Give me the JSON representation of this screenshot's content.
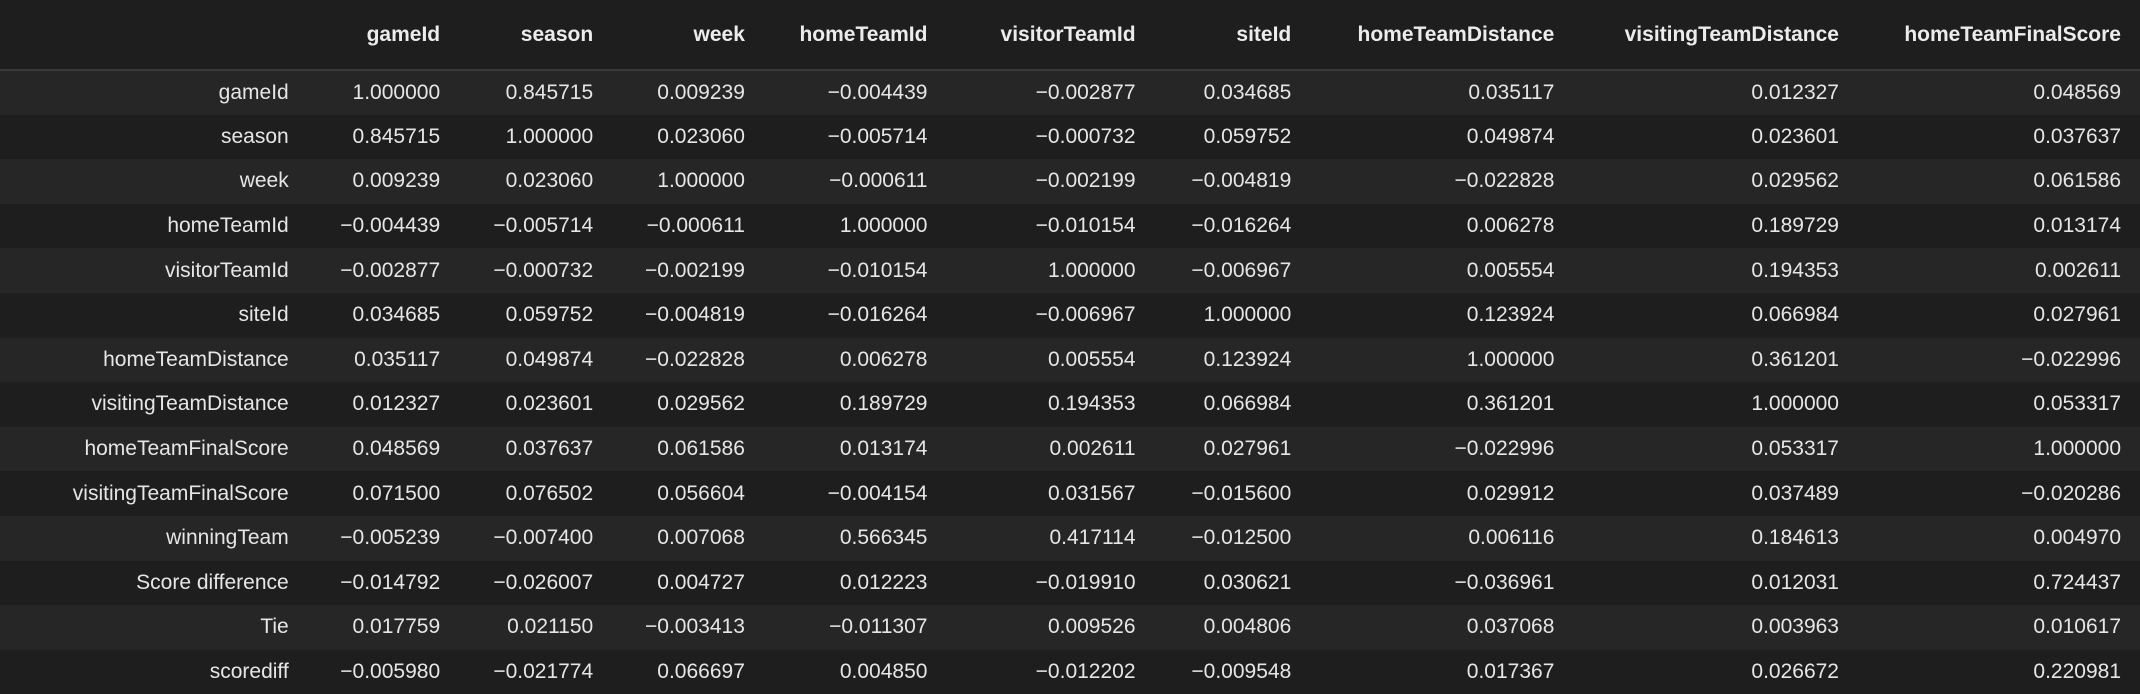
{
  "columns": [
    "gameId",
    "season",
    "week",
    "homeTeamId",
    "visitorTeamId",
    "siteId",
    "homeTeamDistance",
    "visitingTeamDistance",
    "homeTeamFinalScore"
  ],
  "rows": [
    {
      "label": "gameId",
      "values": [
        "1.000000",
        "0.845715",
        "0.009239",
        "−0.004439",
        "−0.002877",
        "0.034685",
        "0.035117",
        "0.012327",
        "0.048569"
      ]
    },
    {
      "label": "season",
      "values": [
        "0.845715",
        "1.000000",
        "0.023060",
        "−0.005714",
        "−0.000732",
        "0.059752",
        "0.049874",
        "0.023601",
        "0.037637"
      ]
    },
    {
      "label": "week",
      "values": [
        "0.009239",
        "0.023060",
        "1.000000",
        "−0.000611",
        "−0.002199",
        "−0.004819",
        "−0.022828",
        "0.029562",
        "0.061586"
      ]
    },
    {
      "label": "homeTeamId",
      "values": [
        "−0.004439",
        "−0.005714",
        "−0.000611",
        "1.000000",
        "−0.010154",
        "−0.016264",
        "0.006278",
        "0.189729",
        "0.013174"
      ]
    },
    {
      "label": "visitorTeamId",
      "values": [
        "−0.002877",
        "−0.000732",
        "−0.002199",
        "−0.010154",
        "1.000000",
        "−0.006967",
        "0.005554",
        "0.194353",
        "0.002611"
      ]
    },
    {
      "label": "siteId",
      "values": [
        "0.034685",
        "0.059752",
        "−0.004819",
        "−0.016264",
        "−0.006967",
        "1.000000",
        "0.123924",
        "0.066984",
        "0.027961"
      ]
    },
    {
      "label": "homeTeamDistance",
      "values": [
        "0.035117",
        "0.049874",
        "−0.022828",
        "0.006278",
        "0.005554",
        "0.123924",
        "1.000000",
        "0.361201",
        "−0.022996"
      ]
    },
    {
      "label": "visitingTeamDistance",
      "values": [
        "0.012327",
        "0.023601",
        "0.029562",
        "0.189729",
        "0.194353",
        "0.066984",
        "0.361201",
        "1.000000",
        "0.053317"
      ]
    },
    {
      "label": "homeTeamFinalScore",
      "values": [
        "0.048569",
        "0.037637",
        "0.061586",
        "0.013174",
        "0.002611",
        "0.027961",
        "−0.022996",
        "0.053317",
        "1.000000"
      ]
    },
    {
      "label": "visitingTeamFinalScore",
      "values": [
        "0.071500",
        "0.076502",
        "0.056604",
        "−0.004154",
        "0.031567",
        "−0.015600",
        "0.029912",
        "0.037489",
        "−0.020286"
      ]
    },
    {
      "label": "winningTeam",
      "values": [
        "−0.005239",
        "−0.007400",
        "0.007068",
        "0.566345",
        "0.417114",
        "−0.012500",
        "0.006116",
        "0.184613",
        "0.004970"
      ]
    },
    {
      "label": "Score difference",
      "values": [
        "−0.014792",
        "−0.026007",
        "0.004727",
        "0.012223",
        "−0.019910",
        "0.030621",
        "−0.036961",
        "0.012031",
        "0.724437"
      ]
    },
    {
      "label": "Tie",
      "values": [
        "0.017759",
        "0.021150",
        "−0.003413",
        "−0.011307",
        "0.009526",
        "0.004806",
        "0.037068",
        "0.003963",
        "0.010617"
      ]
    },
    {
      "label": "scorediff",
      "values": [
        "−0.005980",
        "−0.021774",
        "0.066697",
        "0.004850",
        "−0.012202",
        "−0.009548",
        "0.017367",
        "0.026672",
        "0.220981"
      ]
    }
  ]
}
